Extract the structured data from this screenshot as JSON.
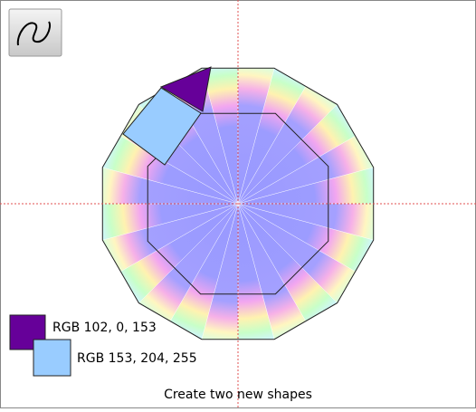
{
  "swatches": [
    {
      "label": "RGB 102, 0, 153"
    },
    {
      "label": "RGB 153, 204, 255"
    }
  ],
  "caption": "Create two new shapes"
}
